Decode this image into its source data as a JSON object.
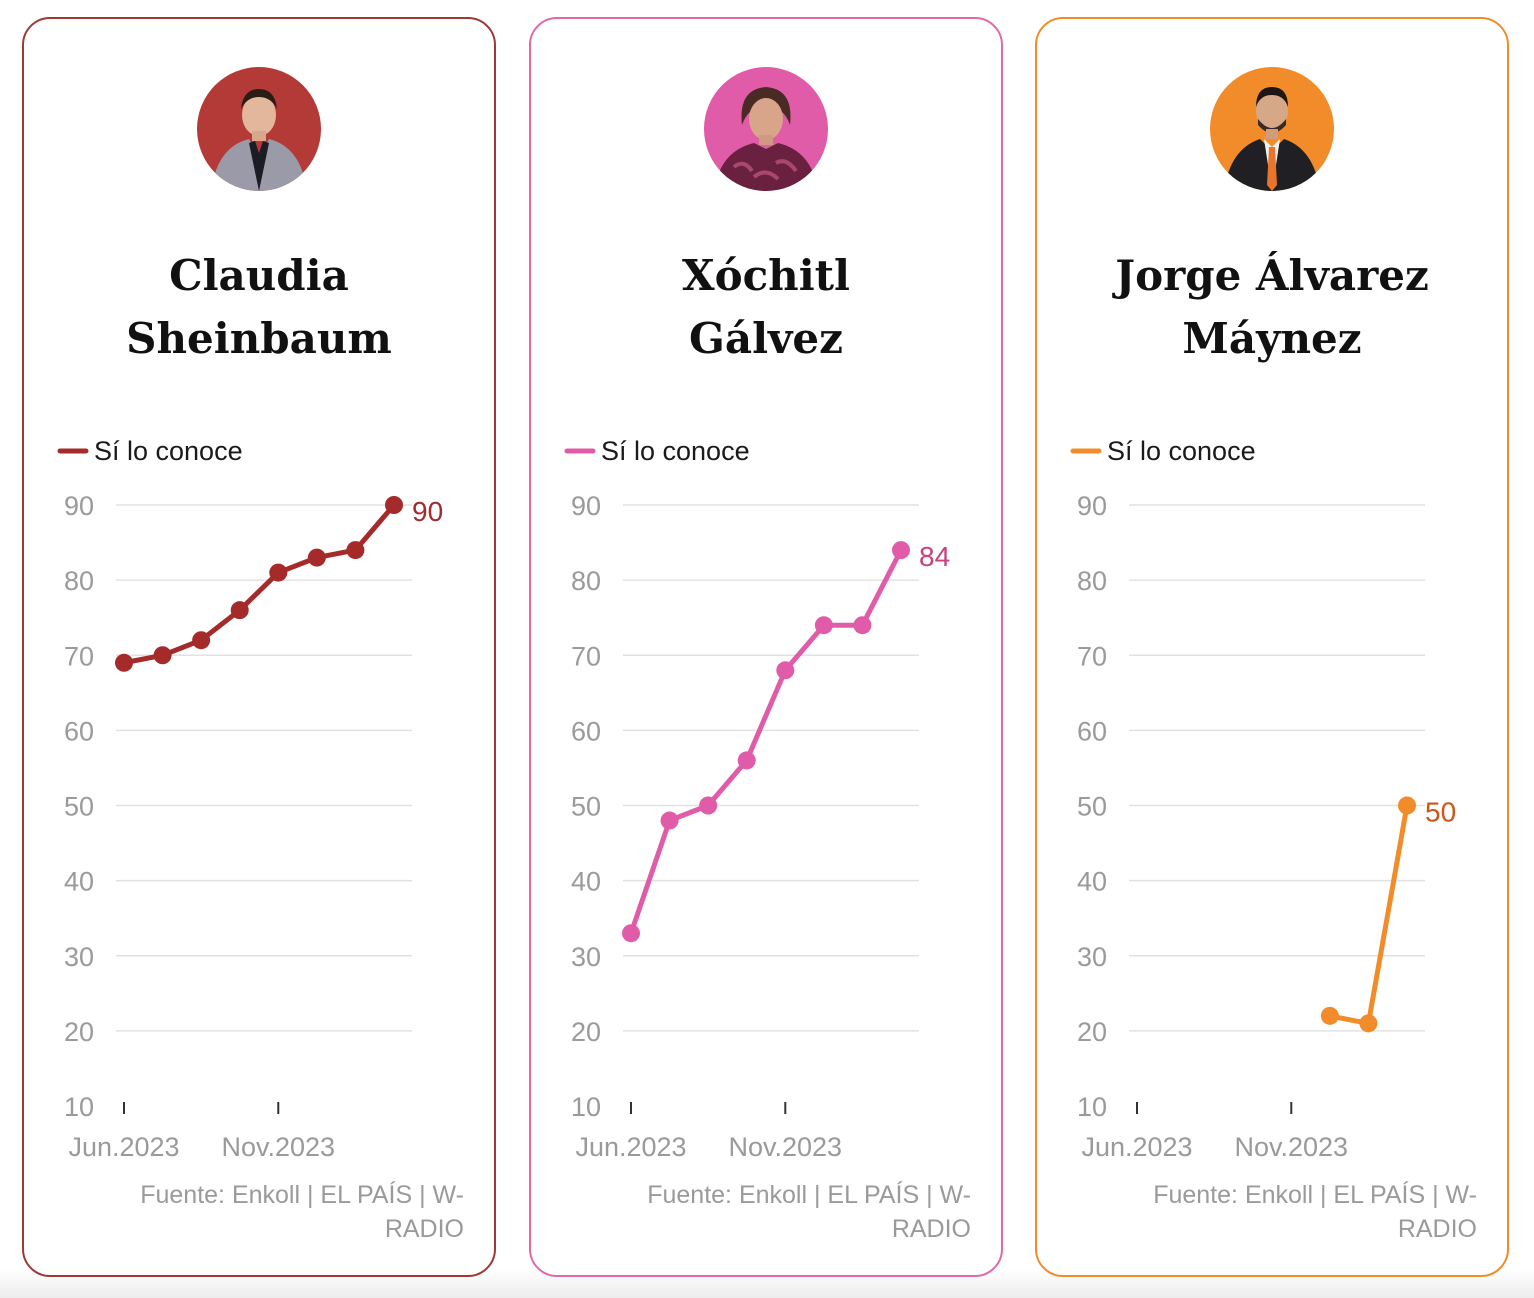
{
  "source_text": "Fuente: Enkoll | EL PAÍS | W-RADIO",
  "chart_data": [
    {
      "type": "line",
      "candidate": "Claudia Sheinbaum",
      "color": "#a52a2a",
      "label_color": "#a52a2a",
      "legend": "Sí lo conoce",
      "yticks": [
        10,
        20,
        30,
        40,
        50,
        60,
        70,
        80,
        90
      ],
      "ylim": [
        10,
        90
      ],
      "xticks": [
        "Jun.2023",
        "Nov.2023"
      ],
      "x_index_range": [
        0,
        7
      ],
      "xtick_index": [
        0,
        4
      ],
      "series": [
        {
          "name": "Sí lo conoce",
          "points": [
            {
              "x": 0,
              "y": 69
            },
            {
              "x": 1,
              "y": 70
            },
            {
              "x": 2,
              "y": 72
            },
            {
              "x": 3,
              "y": 76
            },
            {
              "x": 4,
              "y": 81
            },
            {
              "x": 5,
              "y": 83
            },
            {
              "x": 6,
              "y": 84
            },
            {
              "x": 7,
              "y": 90
            }
          ]
        }
      ],
      "end_label": "90"
    },
    {
      "type": "line",
      "candidate": "Xóchitl Gálvez",
      "color": "#e05ca8",
      "label_color": "#c8417f",
      "legend": "Sí lo conoce",
      "yticks": [
        10,
        20,
        30,
        40,
        50,
        60,
        70,
        80,
        90
      ],
      "ylim": [
        10,
        90
      ],
      "xticks": [
        "Jun.2023",
        "Nov.2023"
      ],
      "x_index_range": [
        0,
        7
      ],
      "xtick_index": [
        0,
        4
      ],
      "series": [
        {
          "name": "Sí lo conoce",
          "points": [
            {
              "x": 0,
              "y": 33
            },
            {
              "x": 1,
              "y": 48
            },
            {
              "x": 2,
              "y": 50
            },
            {
              "x": 3,
              "y": 56
            },
            {
              "x": 4,
              "y": 68
            },
            {
              "x": 5,
              "y": 74
            },
            {
              "x": 6,
              "y": 74
            },
            {
              "x": 7,
              "y": 84
            }
          ]
        }
      ],
      "end_label": "84"
    },
    {
      "type": "line",
      "candidate": "Jorge Álvarez Máynez",
      "color": "#f28c2a",
      "label_color": "#c9561b",
      "legend": "Sí lo conoce",
      "yticks": [
        10,
        20,
        30,
        40,
        50,
        60,
        70,
        80,
        90
      ],
      "ylim": [
        10,
        90
      ],
      "xticks": [
        "Jun.2023",
        "Nov.2023"
      ],
      "x_index_range": [
        0,
        7
      ],
      "xtick_index": [
        0,
        4
      ],
      "series": [
        {
          "name": "Sí lo conoce",
          "points": [
            {
              "x": 5,
              "y": 22
            },
            {
              "x": 6,
              "y": 21
            },
            {
              "x": 7,
              "y": 50
            }
          ]
        }
      ],
      "end_label": "50"
    }
  ],
  "cards": [
    {
      "name_line1": "Claudia",
      "name_line2": "Sheinbaum",
      "border": "#9e3a34",
      "avatar_bg": "#b33a36"
    },
    {
      "name_line1": "Xóchitl",
      "name_line2": "Gálvez",
      "border": "#e06aa9",
      "avatar_bg": "#e05ca8"
    },
    {
      "name_line1": "Jorge Álvarez",
      "name_line2": "Máynez",
      "border": "#f28c2a",
      "avatar_bg": "#f28c2a"
    }
  ]
}
